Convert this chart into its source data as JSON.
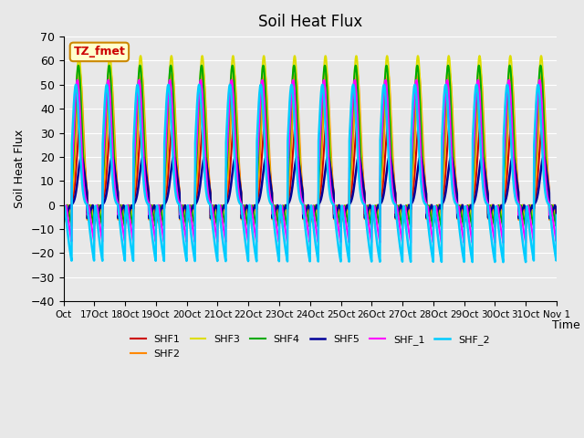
{
  "title": "Soil Heat Flux",
  "xlabel": "Time",
  "ylabel": "Soil Heat Flux",
  "ylim": [
    -40,
    70
  ],
  "yticks": [
    -40,
    -30,
    -20,
    -10,
    0,
    10,
    20,
    30,
    40,
    50,
    60,
    70
  ],
  "xtick_labels": [
    "Oct",
    "17Oct",
    "18Oct",
    "19Oct",
    "20Oct",
    "21Oct",
    "22Oct",
    "23Oct",
    "24Oct",
    "25Oct",
    "26Oct",
    "27Oct",
    "28Oct",
    "29Oct",
    "30Oct",
    "31Oct",
    "Nov 1"
  ],
  "annotation_text": "TZ_fmet",
  "annotation_bbox": {
    "boxstyle": "round,pad=0.3",
    "facecolor": "#ffffcc",
    "edgecolor": "#cc8800"
  },
  "annotation_color": "#cc0000",
  "series": [
    {
      "label": "SHF1",
      "color": "#cc0000",
      "lw": 1.5,
      "amplitude": 35,
      "night_min": -10,
      "phase": 0.05
    },
    {
      "label": "SHF2",
      "color": "#ff8800",
      "lw": 1.5,
      "amplitude": 55,
      "night_min": -12,
      "phase": 0.03
    },
    {
      "label": "SHF3",
      "color": "#dddd00",
      "lw": 1.5,
      "amplitude": 62,
      "night_min": -14,
      "phase": 0.0
    },
    {
      "label": "SHF4",
      "color": "#00aa00",
      "lw": 1.5,
      "amplitude": 58,
      "night_min": -15,
      "phase": -0.02
    },
    {
      "label": "SHF5",
      "color": "#000099",
      "lw": 1.8,
      "amplitude": 20,
      "night_min": -8,
      "phase": 0.08
    },
    {
      "label": "SHF_1",
      "color": "#ff00ff",
      "lw": 1.5,
      "amplitude": 52,
      "night_min": -22,
      "phase": -0.05
    },
    {
      "label": "SHF_2",
      "color": "#00ccff",
      "lw": 1.8,
      "amplitude": 50,
      "night_min": -28,
      "phase": -0.1
    }
  ],
  "bg_color": "#e8e8e8",
  "plot_bg": "#e8e8e8",
  "grid_color": "white",
  "n_days": 16,
  "points_per_day": 96
}
